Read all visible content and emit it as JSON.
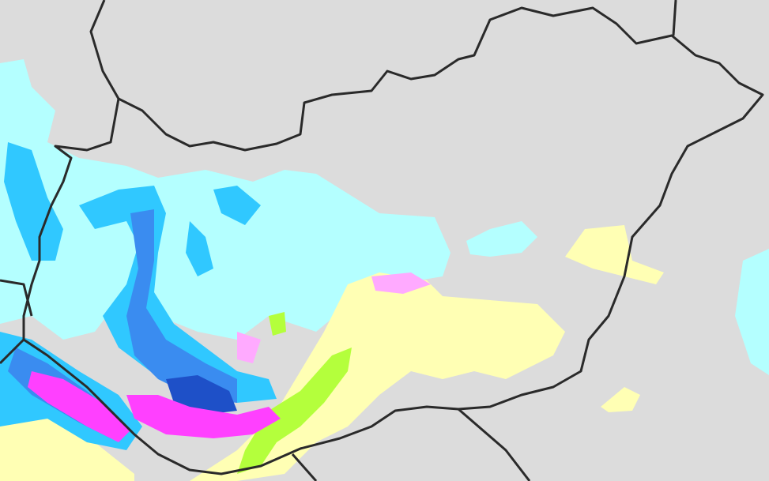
{
  "map": {
    "type": "precipitation-radar",
    "region": "Hungary",
    "colors": {
      "background": "#dcdcdc",
      "border": "#2a2a2a",
      "very_light": "#b4ffff",
      "light": "#30c8ff",
      "moderate": "#3a8cf0",
      "heavy": "#1e50c8",
      "very_heavy": "#ff40ff",
      "pink": "#ffaaff",
      "yellow": "#ffffb4",
      "lime": "#b4ff3c"
    }
  }
}
